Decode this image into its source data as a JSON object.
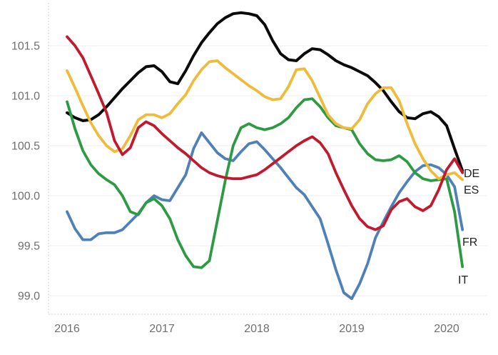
{
  "page": {
    "background": "#ffffff"
  },
  "chart_data": {
    "type": "line",
    "title": "",
    "grid": true,
    "legend_position": "line-end-labels-right",
    "x_axis": {
      "tick_labels": [
        "2016",
        "2017",
        "2018",
        "2019",
        "2020"
      ],
      "frequency": "monthly",
      "first_point": "2016-01",
      "last_point": "2020-03"
    },
    "y_axis": {
      "tick_labels": [
        "99.0",
        "99.5",
        "100.0",
        "100.5",
        "101.0",
        "101.5"
      ],
      "tick_values": [
        99.0,
        99.5,
        100.0,
        100.5,
        101.0,
        101.5
      ],
      "visible_min": 98.8,
      "visible_max": 101.9
    },
    "series": [
      {
        "id": "de",
        "label": "DE",
        "color": "#0a0a0a",
        "values": [
          100.83,
          100.78,
          100.75,
          100.76,
          100.81,
          100.89,
          100.98,
          101.07,
          101.15,
          101.23,
          101.29,
          101.3,
          101.24,
          101.14,
          101.12,
          101.25,
          101.4,
          101.53,
          101.63,
          101.72,
          101.78,
          101.82,
          101.83,
          101.82,
          101.8,
          101.71,
          101.55,
          101.42,
          101.36,
          101.35,
          101.42,
          101.47,
          101.46,
          101.41,
          101.35,
          101.31,
          101.28,
          101.24,
          101.2,
          101.13,
          101.05,
          100.94,
          100.84,
          100.78,
          100.77,
          100.82,
          100.84,
          100.79,
          100.7,
          100.47,
          100.25
        ]
      },
      {
        "id": "es",
        "label": "ES",
        "color": "#eebc3a",
        "values": [
          101.25,
          101.08,
          100.9,
          100.73,
          100.6,
          100.5,
          100.44,
          100.47,
          100.6,
          100.76,
          100.81,
          100.81,
          100.78,
          100.82,
          100.92,
          101.01,
          101.15,
          101.26,
          101.34,
          101.35,
          101.28,
          101.22,
          101.16,
          101.1,
          101.05,
          100.99,
          100.96,
          100.97,
          101.09,
          101.26,
          101.27,
          101.15,
          100.98,
          100.81,
          100.72,
          100.68,
          100.67,
          100.76,
          100.92,
          101.02,
          101.08,
          101.08,
          100.95,
          100.72,
          100.52,
          100.37,
          100.25,
          100.17,
          100.21,
          100.23,
          100.16
        ]
      },
      {
        "id": "fr",
        "label": "FR",
        "color": "#4f81b7",
        "values": [
          99.84,
          99.67,
          99.56,
          99.56,
          99.62,
          99.63,
          99.63,
          99.66,
          99.74,
          99.82,
          99.93,
          100.0,
          99.96,
          99.95,
          100.08,
          100.21,
          100.47,
          100.63,
          100.53,
          100.43,
          100.37,
          100.35,
          100.44,
          100.52,
          100.54,
          100.46,
          100.37,
          100.28,
          100.18,
          100.08,
          100.01,
          99.89,
          99.77,
          99.52,
          99.26,
          99.03,
          98.97,
          99.12,
          99.32,
          99.58,
          99.74,
          99.89,
          100.03,
          100.14,
          100.24,
          100.3,
          100.31,
          100.28,
          100.21,
          100.09,
          99.66
        ]
      },
      {
        "id": "it",
        "label": "IT",
        "color": "#2e9b44",
        "values": [
          100.94,
          100.67,
          100.45,
          100.31,
          100.22,
          100.16,
          100.11,
          100.0,
          99.84,
          99.81,
          99.93,
          99.97,
          99.9,
          99.77,
          99.56,
          99.4,
          99.29,
          99.28,
          99.35,
          99.75,
          100.15,
          100.5,
          100.68,
          100.72,
          100.68,
          100.66,
          100.68,
          100.72,
          100.78,
          100.88,
          100.96,
          100.97,
          100.89,
          100.78,
          100.7,
          100.68,
          100.66,
          100.52,
          100.42,
          100.36,
          100.35,
          100.36,
          100.4,
          100.34,
          100.23,
          100.17,
          100.15,
          100.16,
          100.17,
          99.84,
          99.29
        ]
      },
      {
        "id": "red",
        "label": "",
        "color": "#c11a2e",
        "values": [
          101.59,
          101.5,
          101.38,
          101.2,
          101.02,
          100.83,
          100.55,
          100.41,
          100.48,
          100.68,
          100.74,
          100.7,
          100.62,
          100.55,
          100.48,
          100.42,
          100.35,
          100.28,
          100.23,
          100.2,
          100.18,
          100.17,
          100.17,
          100.19,
          100.21,
          100.26,
          100.32,
          100.38,
          100.44,
          100.5,
          100.55,
          100.59,
          100.53,
          100.42,
          100.23,
          100.06,
          99.9,
          99.77,
          99.69,
          99.66,
          99.7,
          99.86,
          99.94,
          99.97,
          99.89,
          99.85,
          99.9,
          100.06,
          100.26,
          100.37,
          100.23
        ]
      }
    ],
    "colors": {
      "gridline": "#ededed",
      "dotted_axis": "#c6c6c6",
      "tick_text": "#6f6f6f",
      "end_label_text": "#1f1f1f",
      "background": "#ffffff"
    }
  }
}
